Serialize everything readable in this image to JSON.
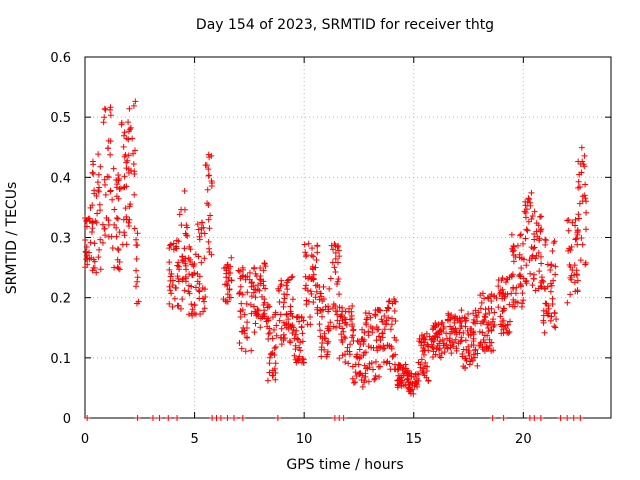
{
  "chart_data": {
    "type": "scatter",
    "title": "Day 154 of 2023, SRMTID for receiver thtg",
    "xlabel": "GPS time / hours",
    "ylabel": "SRMTID / TECUs",
    "xlim": [
      0,
      24
    ],
    "ylim": [
      0,
      0.6
    ],
    "x_ticks": [
      0,
      5,
      10,
      15,
      20
    ],
    "y_ticks": [
      0,
      0.1,
      0.2,
      0.3,
      0.4,
      0.5,
      0.6
    ],
    "x_tick_labels": [
      "0",
      "5",
      "10",
      "15",
      "20"
    ],
    "y_tick_labels": [
      "0",
      "0.1",
      "0.2",
      "0.3",
      "0.4",
      "0.5",
      "0.6"
    ],
    "grid": true,
    "marker": "+",
    "color": "#ff0000",
    "series": [
      {
        "name": "SRMTID",
        "segments": [
          {
            "x_start": 0.0,
            "x_end": 0.3,
            "y": 0.3,
            "spread": 0.06
          },
          {
            "x_start": 0.3,
            "x_end": 0.8,
            "y": 0.34,
            "spread": 0.1
          },
          {
            "x_start": 0.8,
            "x_end": 1.2,
            "y": 0.4,
            "spread": 0.12
          },
          {
            "x_start": 1.2,
            "x_end": 1.6,
            "y": 0.32,
            "spread": 0.1
          },
          {
            "x_start": 1.6,
            "x_end": 2.0,
            "y": 0.38,
            "spread": 0.12
          },
          {
            "x_start": 2.0,
            "x_end": 2.3,
            "y": 0.42,
            "spread": 0.12
          },
          {
            "x_start": 2.3,
            "x_end": 2.45,
            "y": 0.25,
            "spread": 0.08
          },
          {
            "x_start": 3.8,
            "x_end": 4.3,
            "y": 0.24,
            "spread": 0.06
          },
          {
            "x_start": 4.3,
            "x_end": 4.7,
            "y": 0.28,
            "spread": 0.1
          },
          {
            "x_start": 4.7,
            "x_end": 5.1,
            "y": 0.23,
            "spread": 0.06
          },
          {
            "x_start": 5.1,
            "x_end": 5.5,
            "y": 0.25,
            "spread": 0.08
          },
          {
            "x_start": 5.5,
            "x_end": 5.8,
            "y": 0.35,
            "spread": 0.09
          },
          {
            "x_start": 6.3,
            "x_end": 6.7,
            "y": 0.23,
            "spread": 0.04
          },
          {
            "x_start": 7.0,
            "x_end": 7.6,
            "y": 0.18,
            "spread": 0.07
          },
          {
            "x_start": 7.6,
            "x_end": 8.3,
            "y": 0.2,
            "spread": 0.06
          },
          {
            "x_start": 8.3,
            "x_end": 8.8,
            "y": 0.13,
            "spread": 0.07
          },
          {
            "x_start": 8.8,
            "x_end": 9.5,
            "y": 0.18,
            "spread": 0.06
          },
          {
            "x_start": 9.5,
            "x_end": 10.0,
            "y": 0.13,
            "spread": 0.04
          },
          {
            "x_start": 10.0,
            "x_end": 10.6,
            "y": 0.22,
            "spread": 0.07
          },
          {
            "x_start": 10.6,
            "x_end": 11.2,
            "y": 0.16,
            "spread": 0.06
          },
          {
            "x_start": 11.2,
            "x_end": 11.6,
            "y": 0.22,
            "spread": 0.07
          },
          {
            "x_start": 11.6,
            "x_end": 12.2,
            "y": 0.14,
            "spread": 0.05
          },
          {
            "x_start": 12.2,
            "x_end": 12.8,
            "y": 0.1,
            "spread": 0.05
          },
          {
            "x_start": 12.8,
            "x_end": 13.5,
            "y": 0.12,
            "spread": 0.06
          },
          {
            "x_start": 13.5,
            "x_end": 14.2,
            "y": 0.14,
            "spread": 0.06
          },
          {
            "x_start": 14.2,
            "x_end": 14.7,
            "y": 0.07,
            "spread": 0.02
          },
          {
            "x_start": 14.7,
            "x_end": 15.2,
            "y": 0.06,
            "spread": 0.02
          },
          {
            "x_start": 15.2,
            "x_end": 15.8,
            "y": 0.1,
            "spread": 0.04
          },
          {
            "x_start": 15.8,
            "x_end": 16.5,
            "y": 0.13,
            "spread": 0.03
          },
          {
            "x_start": 16.5,
            "x_end": 17.2,
            "y": 0.14,
            "spread": 0.04
          },
          {
            "x_start": 17.2,
            "x_end": 18.0,
            "y": 0.13,
            "spread": 0.05
          },
          {
            "x_start": 18.0,
            "x_end": 18.8,
            "y": 0.16,
            "spread": 0.05
          },
          {
            "x_start": 18.8,
            "x_end": 19.4,
            "y": 0.19,
            "spread": 0.05
          },
          {
            "x_start": 19.4,
            "x_end": 20.0,
            "y": 0.24,
            "spread": 0.07
          },
          {
            "x_start": 20.0,
            "x_end": 20.4,
            "y": 0.3,
            "spread": 0.08
          },
          {
            "x_start": 20.4,
            "x_end": 20.9,
            "y": 0.28,
            "spread": 0.07
          },
          {
            "x_start": 20.9,
            "x_end": 21.5,
            "y": 0.22,
            "spread": 0.08
          },
          {
            "x_start": 22.0,
            "x_end": 22.5,
            "y": 0.26,
            "spread": 0.07
          },
          {
            "x_start": 22.5,
            "x_end": 22.9,
            "y": 0.35,
            "spread": 0.1
          }
        ],
        "zero_markers_x": [
          0.1,
          2.4,
          3.1,
          3.4,
          3.8,
          4.2,
          5.8,
          6.0,
          6.2,
          6.5,
          6.8,
          7.2,
          8.8,
          11.4,
          11.6,
          11.8,
          18.6,
          19.1,
          20.3,
          20.5,
          20.8,
          21.7,
          22.0,
          22.3,
          22.6
        ]
      }
    ]
  }
}
